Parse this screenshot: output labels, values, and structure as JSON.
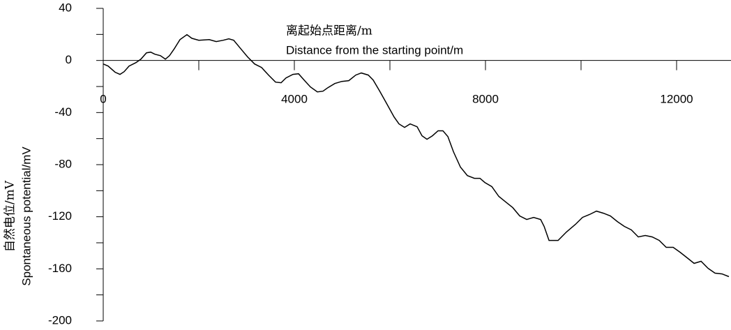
{
  "chart_data": {
    "type": "line",
    "xlabel": [
      "离起始点距离/m",
      "Distance from the starting point/m"
    ],
    "ylabel": [
      "自然电位/mV",
      "Spontaneous potential/mV"
    ],
    "x": [
      0,
      102,
      248,
      350,
      438,
      540,
      686,
      788,
      905,
      993,
      1080,
      1197,
      1300,
      1387,
      1489,
      1606,
      1752,
      1854,
      2000,
      2219,
      2365,
      2511,
      2628,
      2730,
      2876,
      3022,
      3168,
      3314,
      3460,
      3606,
      3723,
      3825,
      3971,
      4088,
      4205,
      4336,
      4482,
      4599,
      4701,
      4847,
      4993,
      5139,
      5285,
      5402,
      5548,
      5650,
      5796,
      5942,
      6088,
      6190,
      6307,
      6424,
      6570,
      6672,
      6775,
      6891,
      7008,
      7110,
      7213,
      7330,
      7476,
      7622,
      7768,
      7885,
      7987,
      8133,
      8279,
      8425,
      8571,
      8717,
      8863,
      9009,
      9155,
      9228,
      9330,
      9520,
      9695,
      9885,
      10031,
      10177,
      10323,
      10469,
      10615,
      10761,
      10907,
      11053,
      11199,
      11345,
      11491,
      11637,
      11783,
      11929,
      12075,
      12221,
      12367,
      12513,
      12659,
      12805,
      12951,
      13095
    ],
    "values": [
      -2.7,
      -4.3,
      -9,
      -10.7,
      -8.6,
      -4.3,
      -1.6,
      1,
      5.9,
      6.4,
      4.8,
      3.7,
      1,
      3.7,
      9.1,
      16,
      19.8,
      17,
      15.5,
      16,
      14.5,
      15.5,
      16.6,
      15.5,
      9.1,
      2.7,
      -2.7,
      -5.4,
      -11.2,
      -16.6,
      -17.1,
      -13.4,
      -10.7,
      -10.2,
      -15,
      -20.3,
      -24.1,
      -23.6,
      -20.9,
      -17.7,
      -16.1,
      -15.5,
      -11.2,
      -9.6,
      -11.2,
      -15,
      -24.1,
      -33.7,
      -43.4,
      -48.7,
      -51.4,
      -48.7,
      -50.9,
      -57.8,
      -60.5,
      -57.8,
      -54,
      -54,
      -58.4,
      -70.1,
      -81.9,
      -88.4,
      -90.5,
      -90.5,
      -93.7,
      -96.9,
      -104.4,
      -108.7,
      -113,
      -119.4,
      -122.1,
      -120.5,
      -122.1,
      -127.4,
      -138.2,
      -138.2,
      -131.7,
      -125.8,
      -120.5,
      -118.3,
      -115.7,
      -117.3,
      -119.4,
      -123.7,
      -127.4,
      -130.1,
      -135.5,
      -134.4,
      -135.5,
      -138.2,
      -143.5,
      -143.5,
      -147.3,
      -151.5,
      -155.8,
      -154.2,
      -159.6,
      -163.3,
      -163.9,
      -166
    ],
    "color": "#000000",
    "xlim": [
      0,
      13100
    ],
    "xticks": [
      0,
      4000,
      8000,
      12000
    ],
    "xticks_minor": [
      2000,
      6000,
      10000
    ],
    "ylim": [
      -200,
      40
    ],
    "yticks": [
      40,
      0,
      -40,
      -80,
      -120,
      -160,
      -200
    ],
    "yticks_minor": [
      20,
      -20,
      -60,
      -100,
      -140,
      -180
    ]
  }
}
